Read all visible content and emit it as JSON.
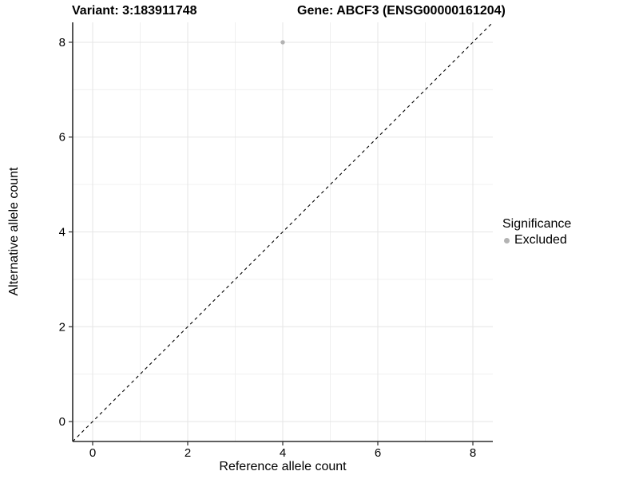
{
  "header": {
    "variant_title": "Variant: 3:183911748",
    "gene_title": "Gene: ABCF3 (ENSG00000161204)"
  },
  "chart_data": {
    "type": "scatter",
    "xlabel": "Reference allele count",
    "ylabel": "Alternative allele count",
    "xlim": [
      -0.42,
      8.42
    ],
    "ylim": [
      -0.42,
      8.42
    ],
    "x_ticks": [
      0,
      2,
      4,
      6,
      8
    ],
    "y_ticks": [
      0,
      2,
      4,
      6,
      8
    ],
    "x_minor_ticks": [
      1,
      3,
      5,
      7
    ],
    "y_minor_ticks": [
      1,
      3,
      5,
      7
    ],
    "grid": true,
    "points": [
      {
        "x": 4,
        "y": 8,
        "series": "Excluded"
      }
    ],
    "reference_line": {
      "slope": 1,
      "intercept": 0,
      "dashed": true
    },
    "legend": {
      "title": "Significance",
      "position": "right",
      "items": [
        {
          "label": "Excluded",
          "color": "#b3b3b3"
        }
      ]
    },
    "colors": {
      "point": "#b3b3b3",
      "grid_major": "#e5e5e5",
      "grid_minor": "#f0f0f0",
      "axis": "#2b2b2b",
      "reference_line": "#000000",
      "background": "#ffffff"
    }
  }
}
